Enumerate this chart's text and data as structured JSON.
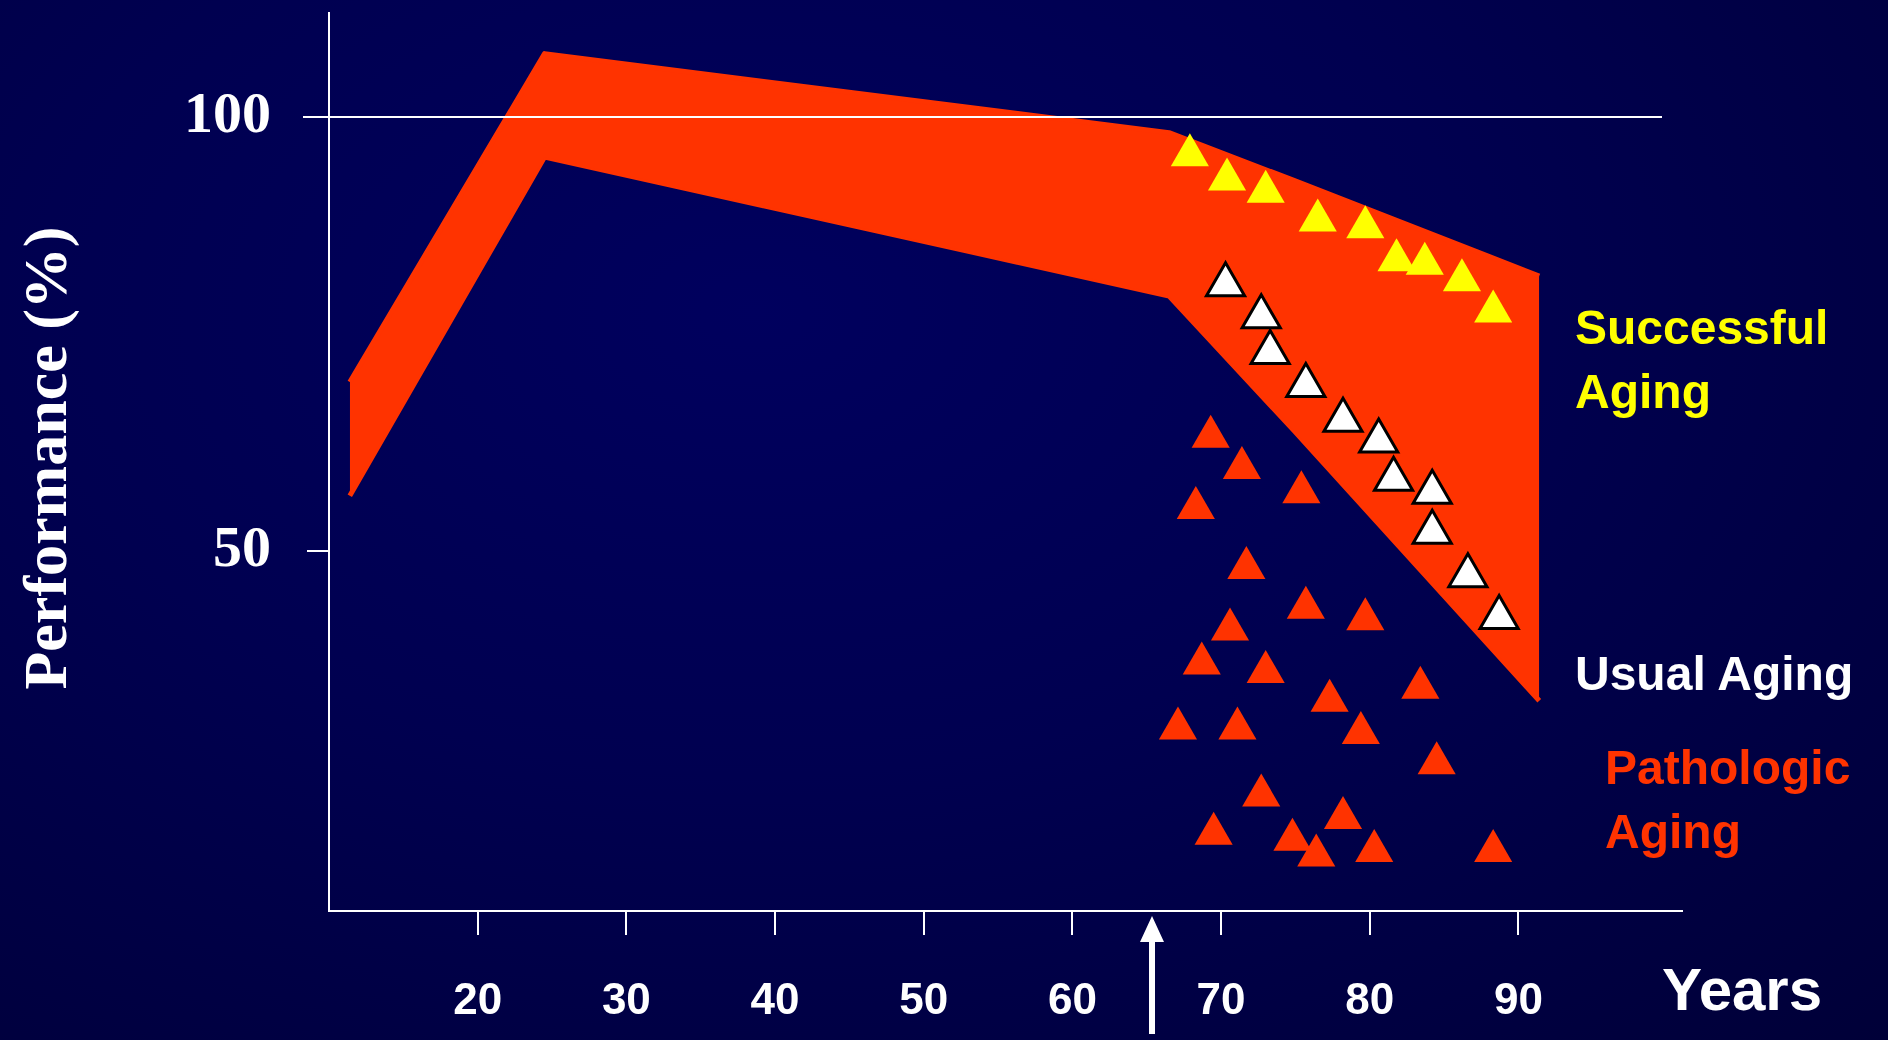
{
  "chart_data": {
    "type": "scatter",
    "ylabel": "Performance (%)",
    "xlabel": "Years",
    "xlim": [
      10,
      101
    ],
    "ylim": [
      8.6,
      112
    ],
    "xticks": [
      20,
      30,
      40,
      50,
      60,
      70,
      80,
      90
    ],
    "yticks": [
      50,
      100
    ],
    "grid": false,
    "legend": false,
    "marker": "triangle",
    "ref_lines": [
      {
        "axis": "y",
        "value": 100,
        "color": "#ffffff"
      }
    ],
    "series": [
      {
        "type": "area",
        "color": "#ff3300",
        "marker": "none",
        "x": [
          11.4,
          24.5,
          66.5,
          74.9,
          91.4
        ],
        "values": [
          null,
          null,
          null,
          null,
          null
        ],
        "upper": [
          69.5,
          107.3,
          98.2,
          92.7,
          81.7
        ],
        "lower": [
          56.4,
          95.4,
          79.4,
          63.9,
          32.8
        ]
      },
      {
        "name": "Successful Aging",
        "color": "#ffff00",
        "x": [
          67.9,
          70.4,
          73.0,
          76.5,
          79.7,
          81.8,
          83.7,
          86.2,
          88.3
        ],
        "values": [
          95.6,
          92.8,
          91.4,
          88.1,
          87.3,
          83.5,
          83.1,
          81.2,
          77.6
        ]
      },
      {
        "name": "Usual Aging",
        "color": "#ffffff",
        "x": [
          70.3,
          72.7,
          73.3,
          75.7,
          78.2,
          80.6,
          81.6,
          84.2,
          84.2,
          86.6,
          88.7
        ],
        "values": [
          80.7,
          77.0,
          72.9,
          69.1,
          65.1,
          62.7,
          58.3,
          56.8,
          52.2,
          47.2,
          42.4
        ]
      },
      {
        "name": "Pathologic Aging",
        "color": "#ff3300",
        "x": [
          69.3,
          71.4,
          68.3,
          75.4,
          71.7,
          70.6,
          75.7,
          79.7,
          68.7,
          73.0,
          77.3,
          83.4,
          67.1,
          71.1,
          79.4,
          84.5,
          72.7,
          69.5,
          74.8,
          78.2,
          76.4,
          80.3,
          88.3
        ],
        "values": [
          63.2,
          59.6,
          55.0,
          56.8,
          48.1,
          41.0,
          43.5,
          42.2,
          37.1,
          36.1,
          32.8,
          34.3,
          29.6,
          29.6,
          29.1,
          25.6,
          21.9,
          17.5,
          16.8,
          19.3,
          15.0,
          15.5,
          15.5
        ]
      }
    ]
  }
}
